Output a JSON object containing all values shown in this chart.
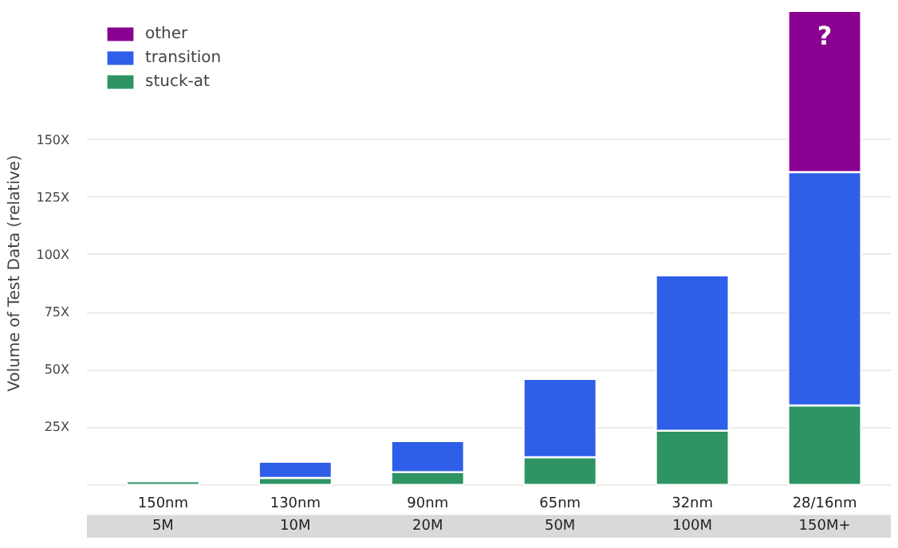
{
  "chart_data": {
    "type": "bar",
    "stacked": true,
    "ylabel": "Volume of Test Data (relative)",
    "categories": [
      "150nm\n5M",
      "130nm\n10M",
      "90nm\n20M",
      "65nm\n50M",
      "32nm\n100M",
      "28/16nm\n150M+"
    ],
    "series": [
      {
        "name": "stuck-at",
        "color": "#2e9464",
        "values": [
          1.5,
          3,
          5.5,
          12,
          23.5,
          34.5
        ]
      },
      {
        "name": "transition",
        "color": "#2f5fe8",
        "values": [
          null,
          7,
          13.5,
          34,
          67.5,
          101.5
        ]
      },
      {
        "name": "other",
        "color": "#8a0090",
        "values": [
          null,
          null,
          null,
          null,
          null,
          70
        ]
      }
    ],
    "ylim": [
      0,
      207
    ],
    "yticks": [
      {
        "value": 0,
        "label": null
      },
      {
        "value": 25,
        "label": "25X"
      },
      {
        "value": 50,
        "label": "50X"
      },
      {
        "value": 75,
        "label": "75X"
      },
      {
        "value": 100,
        "label": "100X"
      },
      {
        "value": 125,
        "label": "125X"
      },
      {
        "value": 150,
        "label": "150X"
      }
    ],
    "annotations": [
      "?"
    ],
    "grid": "y",
    "legend": "top left"
  }
}
